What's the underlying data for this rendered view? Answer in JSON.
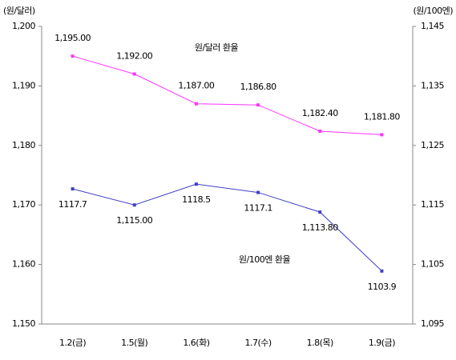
{
  "chart_data": {
    "type": "line",
    "y_label": "(원/달러)",
    "y2_label": "(원/100엔)",
    "annotations": [
      "원/달러 환율",
      "원/100엔 환율"
    ],
    "categories": [
      "1.2(금)",
      "1.5(월)",
      "1.6(화)",
      "1.7(수)",
      "1.8(목)",
      "1.9(금)"
    ],
    "series": [
      {
        "name": "원/달러 환율",
        "color": "#ff33ff",
        "values": [
          1195.0,
          1192.0,
          1187.0,
          1186.8,
          1182.4,
          1181.8
        ],
        "value_labels": [
          "1,195.00",
          "1,192.00",
          "1,187.00",
          "1,186.80",
          "1,182.40",
          "1,181.80"
        ]
      },
      {
        "name": "원/100엔 환율",
        "color": "#4040c8",
        "axis": "y2",
        "values": [
          1117.7,
          1115.0,
          1118.5,
          1117.1,
          1113.8,
          1103.9
        ],
        "value_labels": [
          "1117.7",
          "1,115.00",
          "1118.5",
          "1117.1",
          "1,113.80",
          "1103.9"
        ]
      }
    ],
    "ylim": [
      1150,
      1200
    ],
    "yticks": [
      {
        "value": 1150,
        "label": "1,150"
      },
      {
        "value": 1160,
        "label": "1,160"
      },
      {
        "value": 1170,
        "label": "1,170"
      },
      {
        "value": 1180,
        "label": "1,180"
      },
      {
        "value": 1190,
        "label": "1,190"
      },
      {
        "value": 1200,
        "label": "1,200"
      }
    ],
    "y2lim": [
      1095,
      1145
    ],
    "y2ticks": [
      {
        "value": 1095,
        "label": "1,095"
      },
      {
        "value": 1105,
        "label": "1,105"
      },
      {
        "value": 1115,
        "label": "1,115"
      },
      {
        "value": 1125,
        "label": "1,125"
      },
      {
        "value": 1135,
        "label": "1,135"
      },
      {
        "value": 1145,
        "label": "1,145"
      }
    ],
    "grid": false
  }
}
